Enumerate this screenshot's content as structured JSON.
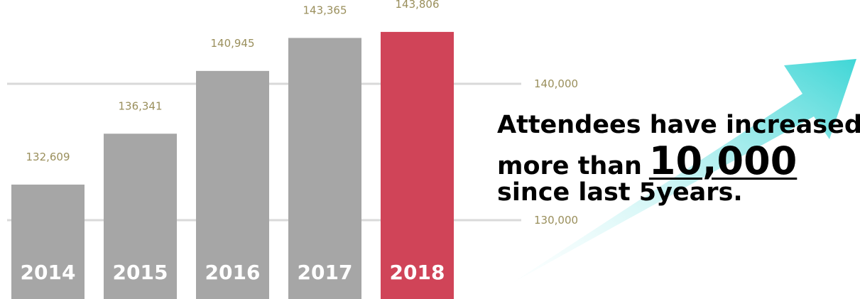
{
  "chart_data": {
    "type": "bar",
    "categories": [
      "2014",
      "2015",
      "2016",
      "2017",
      "2018"
    ],
    "values": [
      132609,
      136341,
      140945,
      143365,
      143806
    ],
    "value_labels": [
      "132,609",
      "136,341",
      "140,945",
      "143,365",
      "143,806"
    ],
    "yticks": [
      {
        "value": 130000,
        "label": "130,000"
      },
      {
        "value": 140000,
        "label": "140,000"
      }
    ],
    "grid": true,
    "title": "",
    "xlabel": "",
    "ylabel": "",
    "colors": {
      "bar": "#a6a6a6",
      "highlight": "#d04458",
      "grid": "#d9d9d9",
      "value_text": "#9a8f5c",
      "arrow_start": "#e8fbfb",
      "arrow_end": "#3fd6d6"
    },
    "highlight_category": "2018"
  },
  "headline": {
    "line1": "Attendees have increased",
    "line2_prefix": "more than",
    "line2_number": "10,000",
    "line3": "since last 5years."
  },
  "decoration": {
    "arrow_icon": "trend-arrow-icon"
  }
}
